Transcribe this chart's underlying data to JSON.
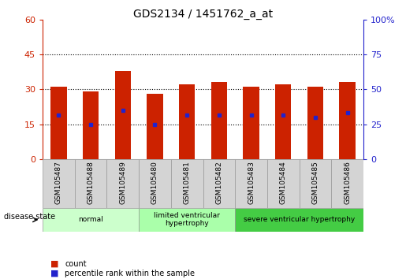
{
  "title": "GDS2134 / 1451762_a_at",
  "samples": [
    "GSM105487",
    "GSM105488",
    "GSM105489",
    "GSM105480",
    "GSM105481",
    "GSM105482",
    "GSM105483",
    "GSM105484",
    "GSM105485",
    "GSM105486"
  ],
  "counts": [
    31,
    29,
    38,
    28,
    32,
    33,
    31,
    32,
    31,
    33
  ],
  "percentile_values": [
    19,
    15,
    21,
    15,
    19,
    19,
    19,
    19,
    18,
    20
  ],
  "bar_color": "#cc2200",
  "percentile_color": "#2222cc",
  "ylim_left": [
    0,
    60
  ],
  "ylim_right": [
    0,
    100
  ],
  "yticks_left": [
    0,
    15,
    30,
    45,
    60
  ],
  "yticks_right": [
    0,
    25,
    50,
    75,
    100
  ],
  "ytick_right_labels": [
    "0",
    "25",
    "50",
    "75",
    "100%"
  ],
  "groups": [
    {
      "label": "normal",
      "start": 0,
      "end": 3,
      "color": "#ccffcc"
    },
    {
      "label": "limited ventricular\nhypertrophy",
      "start": 3,
      "end": 6,
      "color": "#aaffaa"
    },
    {
      "label": "severe ventricular hypertrophy",
      "start": 6,
      "end": 10,
      "color": "#44cc44"
    }
  ],
  "disease_state_label": "disease state",
  "legend_count_label": "count",
  "legend_percentile_label": "percentile rank within the sample",
  "bar_width": 0.5,
  "left_tick_color": "#cc2200",
  "right_tick_color": "#2222cc",
  "bg_color": "#ffffff",
  "plot_bg_color": "#ffffff",
  "xtick_bg_color": "#d4d4d4",
  "xtick_border_color": "#999999"
}
